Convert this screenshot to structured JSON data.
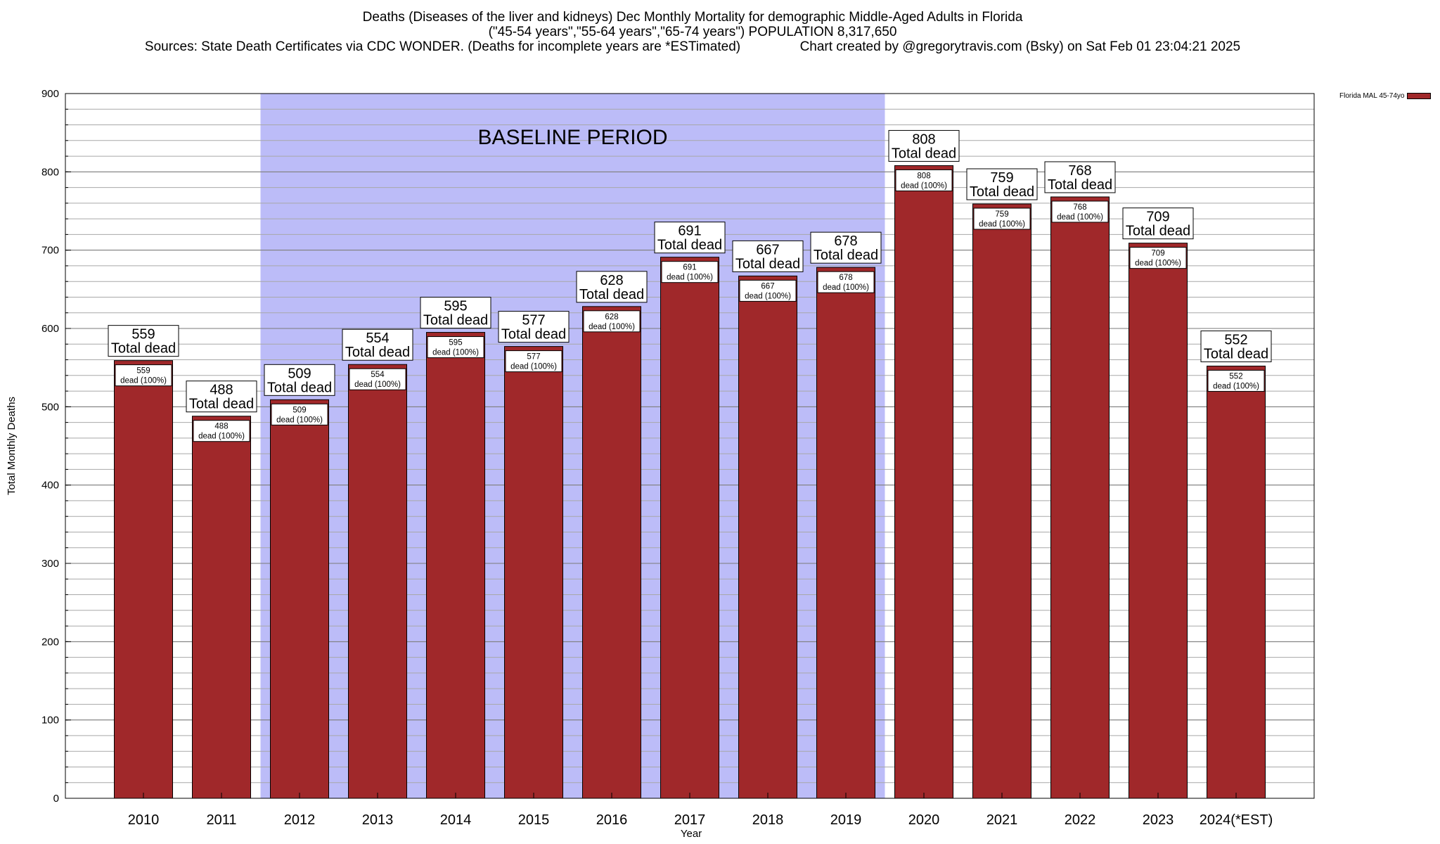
{
  "title": {
    "line1": "Deaths (Diseases of the liver and kidneys) Dec Monthly Mortality for demographic Middle-Aged Adults in Florida",
    "line2": "(\"45-54 years\",\"55-64 years\",\"65-74 years\") POPULATION 8,317,650",
    "sources": "Sources: State Death Certificates via CDC WONDER. (Deaths for incomplete years are *ESTimated)",
    "credit": "Chart created by @gregorytravis.com (Bsky) on Sat Feb 01 23:04:21 2025"
  },
  "legend": {
    "label": "Florida MAL 45-74yo",
    "color": "#a0282a"
  },
  "chart_data": {
    "type": "bar",
    "categories": [
      "2010",
      "2011",
      "2012",
      "2013",
      "2014",
      "2015",
      "2016",
      "2017",
      "2018",
      "2019",
      "2020",
      "2021",
      "2022",
      "2023",
      "2024(*EST)"
    ],
    "series": [
      {
        "name": "Florida MAL 45-74yo",
        "values": [
          559,
          488,
          509,
          554,
          595,
          577,
          628,
          691,
          667,
          678,
          808,
          759,
          768,
          709,
          552
        ]
      }
    ],
    "total_label": "Total dead",
    "inner_label": "dead (100%)",
    "xlabel": "Year",
    "ylabel": "Total Monthly Deaths",
    "ylim": [
      0,
      900
    ],
    "yticks": [
      0,
      100,
      200,
      300,
      400,
      500,
      600,
      700,
      800,
      900
    ],
    "grid": true,
    "legend_position": "top-right",
    "baseline_period": {
      "label": "BASELINE PERIOD",
      "from": "2012",
      "to": "2019",
      "color": "#bcbcf8"
    },
    "bar_color": "#a0282a"
  }
}
